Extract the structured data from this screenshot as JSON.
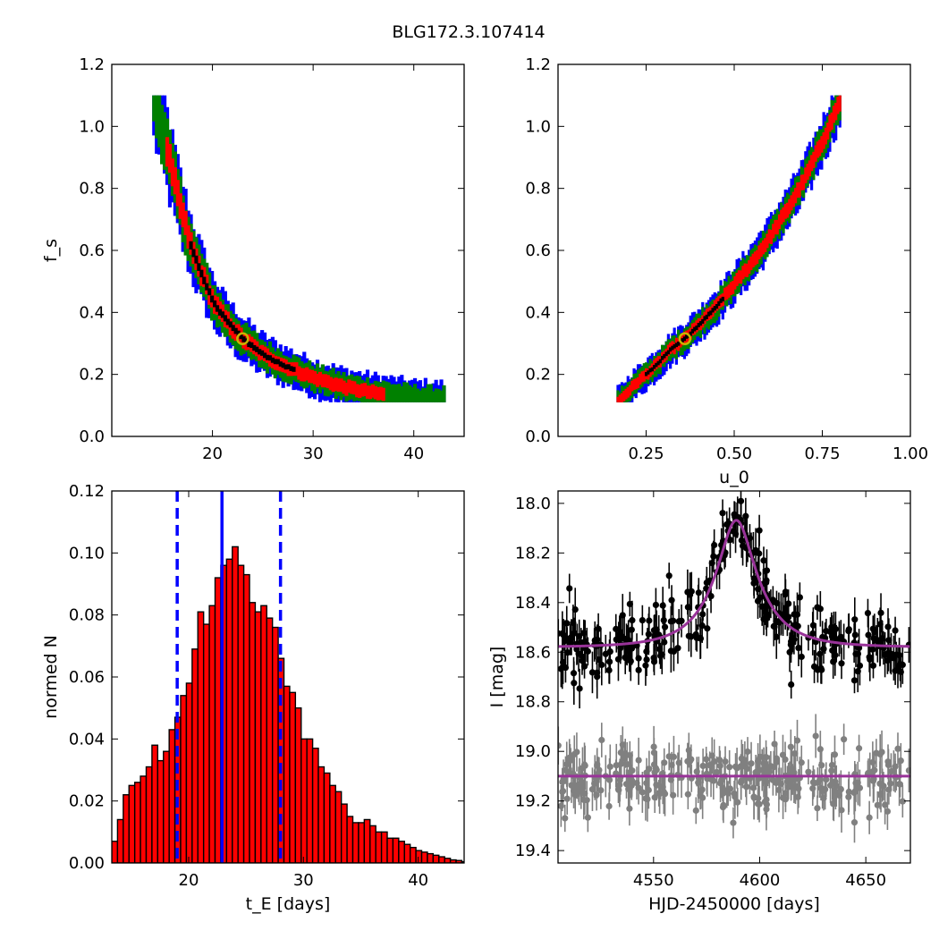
{
  "figure": {
    "title": "BLG172.3.107414"
  },
  "chart_data": [
    {
      "id": "fs_vs_tE",
      "type": "heatmap",
      "title": "",
      "xlabel": "",
      "ylabel": "f_s",
      "xlim": [
        10,
        45
      ],
      "ylim": [
        0.0,
        1.2
      ],
      "xticks": [
        20,
        30,
        40
      ],
      "xtick_labels": [
        "20",
        "30",
        "40"
      ],
      "yticks": [
        0.0,
        0.2,
        0.4,
        0.6,
        0.8,
        1.0,
        1.2
      ],
      "ytick_labels": [
        "0.0",
        "0.2",
        "0.4",
        "0.6",
        "0.8",
        "1.0",
        "1.2"
      ],
      "confidence_colors": [
        "#0000ff",
        "#008000",
        "#ff0000",
        "#000000"
      ],
      "ridge": [
        [
          14.2,
          1.1
        ],
        [
          15.0,
          1.0
        ],
        [
          16.0,
          0.85
        ],
        [
          17.0,
          0.72
        ],
        [
          18.0,
          0.6
        ],
        [
          19.0,
          0.52
        ],
        [
          20.0,
          0.44
        ],
        [
          21.0,
          0.39
        ],
        [
          22.0,
          0.35
        ],
        [
          23.0,
          0.315
        ],
        [
          24.0,
          0.29
        ],
        [
          25.0,
          0.265
        ],
        [
          27.0,
          0.23
        ],
        [
          30.0,
          0.19
        ],
        [
          33.0,
          0.16
        ],
        [
          36.0,
          0.14
        ],
        [
          40.0,
          0.12
        ],
        [
          43.0,
          0.115
        ]
      ],
      "best_fit": {
        "x": 23.0,
        "y": 0.315,
        "marker_color": "#c8b400"
      }
    },
    {
      "id": "fs_vs_u0",
      "type": "heatmap",
      "title": "",
      "xlabel": "u_0",
      "ylabel": "",
      "xlim": [
        0.0,
        1.0
      ],
      "ylim": [
        0.0,
        1.2
      ],
      "xticks": [
        0.25,
        0.5,
        0.75,
        1.0
      ],
      "xtick_labels": [
        "0.25",
        "0.50",
        "0.75",
        "1.00"
      ],
      "yticks": [
        0.0,
        0.2,
        0.4,
        0.6,
        0.8,
        1.0,
        1.2
      ],
      "ytick_labels": [
        "0.0",
        "0.2",
        "0.4",
        "0.6",
        "0.8",
        "1.0",
        "1.2"
      ],
      "confidence_colors": [
        "#0000ff",
        "#008000",
        "#ff0000",
        "#000000"
      ],
      "ridge": [
        [
          0.17,
          0.11
        ],
        [
          0.22,
          0.17
        ],
        [
          0.27,
          0.22
        ],
        [
          0.32,
          0.28
        ],
        [
          0.36,
          0.315
        ],
        [
          0.4,
          0.36
        ],
        [
          0.45,
          0.42
        ],
        [
          0.5,
          0.49
        ],
        [
          0.55,
          0.56
        ],
        [
          0.6,
          0.64
        ],
        [
          0.65,
          0.73
        ],
        [
          0.7,
          0.83
        ],
        [
          0.75,
          0.95
        ],
        [
          0.8,
          1.08
        ]
      ],
      "best_fit": {
        "x": 0.36,
        "y": 0.315,
        "marker_color": "#c8b400"
      }
    },
    {
      "id": "tE_histogram",
      "type": "bar",
      "title": "",
      "xlabel": "t_E [days]",
      "ylabel": "normed N",
      "xlim": [
        13.3,
        44.0
      ],
      "ylim": [
        0.0,
        0.12
      ],
      "xticks": [
        20,
        30,
        40
      ],
      "xtick_labels": [
        "20",
        "30",
        "40"
      ],
      "yticks": [
        0.0,
        0.02,
        0.04,
        0.06,
        0.08,
        0.1,
        0.12
      ],
      "ytick_labels": [
        "0.00",
        "0.02",
        "0.04",
        "0.06",
        "0.08",
        "0.10",
        "0.12"
      ],
      "bar_color": "#ff0000",
      "bin_start": 13.3,
      "bin_width": 0.5,
      "values": [
        0.007,
        0.014,
        0.022,
        0.025,
        0.026,
        0.028,
        0.031,
        0.038,
        0.033,
        0.036,
        0.043,
        0.047,
        0.054,
        0.058,
        0.069,
        0.081,
        0.077,
        0.083,
        0.092,
        0.096,
        0.098,
        0.102,
        0.096,
        0.093,
        0.084,
        0.081,
        0.083,
        0.079,
        0.076,
        0.066,
        0.057,
        0.055,
        0.05,
        0.04,
        0.04,
        0.037,
        0.031,
        0.029,
        0.025,
        0.023,
        0.019,
        0.015,
        0.013,
        0.013,
        0.014,
        0.012,
        0.01,
        0.01,
        0.008,
        0.008,
        0.007,
        0.006,
        0.005,
        0.004,
        0.0035,
        0.003,
        0.0025,
        0.002,
        0.0015,
        0.001,
        0.0008,
        0.0004
      ],
      "vlines": [
        {
          "x": 22.9,
          "style": "solid",
          "color": "#0000ff"
        },
        {
          "x": 19.0,
          "style": "dashed",
          "color": "#0000ff"
        },
        {
          "x": 28.0,
          "style": "dashed",
          "color": "#0000ff"
        }
      ]
    },
    {
      "id": "light_curve",
      "type": "scatter",
      "title": "",
      "xlabel": "HJD-2450000 [days]",
      "ylabel": "I [mag]",
      "xlim": [
        4505,
        4671
      ],
      "ylim": [
        19.45,
        17.95
      ],
      "xticks": [
        4550,
        4600,
        4650
      ],
      "xtick_labels": [
        "4550",
        "4600",
        "4650"
      ],
      "yticks": [
        18.0,
        18.2,
        18.4,
        18.6,
        18.8,
        19.0,
        19.2,
        19.4
      ],
      "ytick_labels": [
        "18.0",
        "18.2",
        "18.4",
        "18.6",
        "18.8",
        "19.0",
        "19.2",
        "19.4"
      ],
      "series": [
        {
          "id": "observed",
          "color": "#000000",
          "model": {
            "t0": 4589.0,
            "tE": 23.0,
            "u0": 0.36,
            "fs": 0.315,
            "baseline": 18.58,
            "color": "#993399"
          }
        },
        {
          "id": "residuals",
          "color": "#808080",
          "model": {
            "flat": 19.1,
            "color": "#993399"
          }
        }
      ],
      "n_points": 300,
      "scatter_mag": 0.07,
      "error_bar_mag": 0.07
    }
  ]
}
